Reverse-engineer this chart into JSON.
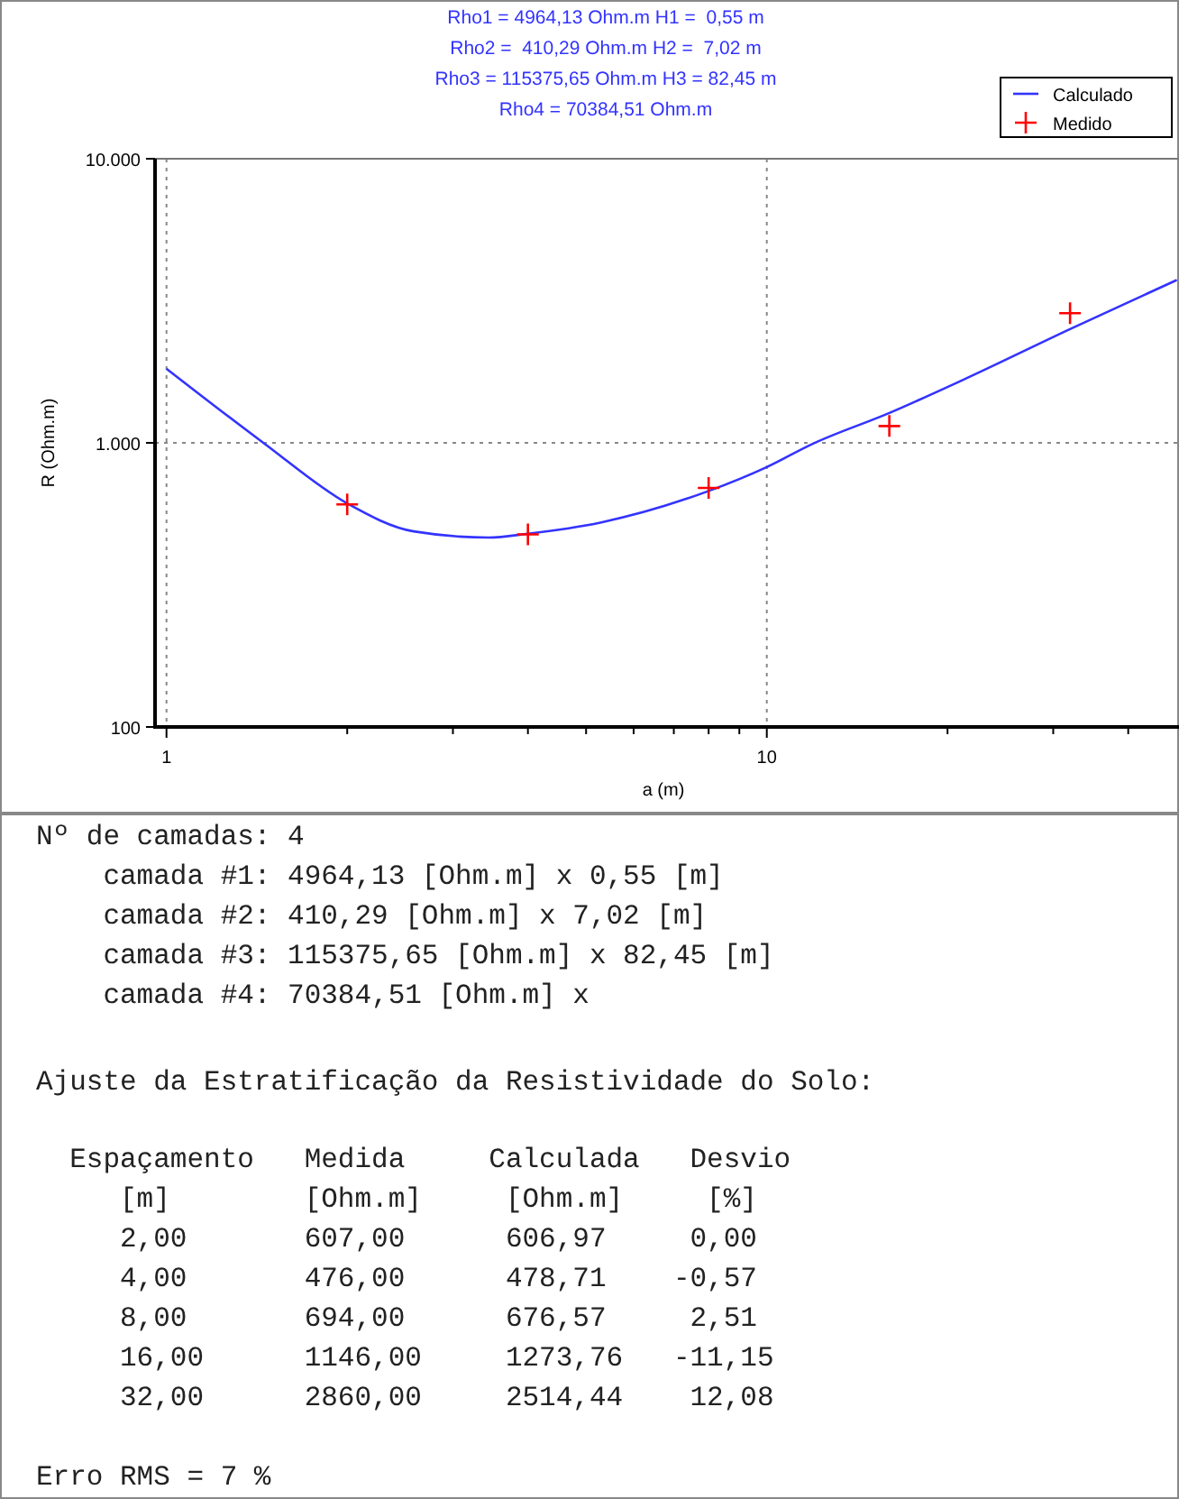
{
  "chart_data": {
    "type": "line",
    "title": "Rho1 = 4964,13 Ohm.m H1 =  0,55 m\nRho2 =  410,29 Ohm.m H2 =  7,02 m\nRho3 = 115375,65 Ohm.m H3 = 82,45 m\nRho4 = 70384,51 Ohm.m",
    "xlabel": "a (m)",
    "ylabel": "R (Ohm.m)",
    "log": "xy",
    "grid": true,
    "legend": "top right",
    "xlim": [
      0.957,
      48.6
    ],
    "ylim": [
      100,
      10000
    ],
    "xticks": [
      1,
      {
        "value": 2,
        "label": null
      },
      {
        "value": 3,
        "label": null
      },
      {
        "value": 4,
        "label": null
      },
      {
        "value": 5,
        "label": null
      },
      {
        "value": 6,
        "label": null
      },
      {
        "value": 7,
        "label": null
      },
      {
        "value": 8,
        "label": null
      },
      {
        "value": 9,
        "label": null
      },
      10,
      {
        "value": 20,
        "label": null
      },
      {
        "value": 30,
        "label": null
      },
      {
        "value": 40,
        "label": null
      }
    ],
    "yticks": [
      {
        "value": 100,
        "label": "100"
      },
      {
        "value": 1000,
        "label": "1.000"
      },
      {
        "value": 10000,
        "label": "10.000"
      }
    ],
    "series": [
      {
        "name": "Calculado",
        "color": "#3333ff",
        "line_style": "solid",
        "marker": "none",
        "x": [
          1,
          1.45,
          2,
          2.58,
          3.44,
          4,
          5.3,
          8,
          10,
          11.9,
          16,
          21.2,
          32,
          48.2
        ],
        "values": [
          1824,
          1000,
          612,
          488,
          464,
          479,
          525,
          677,
          822,
          990,
          1274,
          1664,
          2514,
          3743
        ]
      },
      {
        "name": "Medido",
        "type": "scatter",
        "color": "#ff0000",
        "marker": "cross",
        "x": [
          2,
          4,
          8,
          16,
          32
        ],
        "values": [
          607,
          476,
          694,
          1146,
          2860
        ]
      }
    ],
    "annotations": [
      "Nº de camadas: 4",
      "    camada #1: 4964,13 [Ohm.m] x 0,55 [m]",
      "    camada #2: 410,29 [Ohm.m] x 7,02 [m]",
      "    camada #3: 115375,65 [Ohm.m] x 82,45 [m]",
      "    camada #4: 70384,51 [Ohm.m] x",
      "Ajuste da Estratificação da Resistividade do Solo:",
      "  Espaçamento   Medida     Calculada   Desvio",
      "     [m]        [Ohm.m]     [Ohm.m]     [%]",
      "     2,00       607,00      606,97     0,00",
      "     4,00       476,00      478,71    -0,57",
      "     8,00       694,00      676,57     2,51",
      "     16,00      1146,00     1273,76   -11,15",
      "     32,00      2860,00     2514,44    12,08",
      "Erro RMS = 7 %"
    ]
  }
}
